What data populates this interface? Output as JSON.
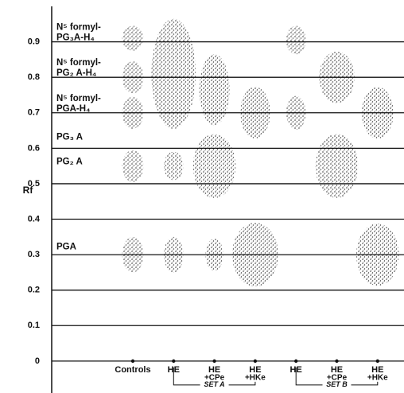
{
  "chart_data": {
    "type": "chromatogram",
    "y_label": "Rf",
    "ylim": [
      -0.09,
      1.0
    ],
    "yticks": [
      0,
      0.1,
      0.2,
      0.3,
      0.4,
      0.5,
      0.6,
      0.7,
      0.8,
      0.9
    ],
    "grid": true,
    "color": "#222222",
    "categories": [
      [
        "Controls"
      ],
      [
        "HE"
      ],
      [
        "HE",
        "+CPe"
      ],
      [
        "HE",
        "+HKe"
      ],
      [
        "HE"
      ],
      [
        "HE",
        "+CPe"
      ],
      [
        "HE",
        "+HKe"
      ]
    ],
    "sets": [
      {
        "label": "SET A",
        "lanes": [
          1,
          3
        ]
      },
      {
        "label": "SET B",
        "lanes": [
          4,
          6
        ]
      }
    ],
    "compound_labels": [
      {
        "lines": [
          "N⁵ formyl-",
          "PG₃A-H₄"
        ],
        "rf": 0.9
      },
      {
        "lines": [
          "N⁵ formyl-",
          "PG₂ A-H₄"
        ],
        "rf": 0.8
      },
      {
        "lines": [
          "N⁵ formyl-",
          "PGA-H₄"
        ],
        "rf": 0.7
      },
      {
        "lines": [
          "PG₃ A"
        ],
        "rf": 0.62
      },
      {
        "lines": [
          "PG₂ A"
        ],
        "rf": 0.55
      },
      {
        "lines": [
          "PGA"
        ],
        "rf": 0.31
      }
    ],
    "spots": [
      {
        "lane": 0,
        "rf": 0.91,
        "height": 0.07,
        "width": 0.06
      },
      {
        "lane": 0,
        "rf": 0.8,
        "height": 0.09,
        "width": 0.06
      },
      {
        "lane": 0,
        "rf": 0.7,
        "height": 0.09,
        "width": 0.06
      },
      {
        "lane": 0,
        "rf": 0.55,
        "height": 0.09,
        "width": 0.06
      },
      {
        "lane": 0,
        "rf": 0.3,
        "height": 0.1,
        "width": 0.06
      },
      {
        "lane": 1,
        "rf": 0.81,
        "height": 0.31,
        "width": 0.125
      },
      {
        "lane": 1,
        "rf": 0.55,
        "height": 0.08,
        "width": 0.055
      },
      {
        "lane": 1,
        "rf": 0.3,
        "height": 0.1,
        "width": 0.055
      },
      {
        "lane": 2,
        "rf": 0.765,
        "height": 0.2,
        "width": 0.085
      },
      {
        "lane": 2,
        "rf": 0.55,
        "height": 0.18,
        "width": 0.12
      },
      {
        "lane": 2,
        "rf": 0.3,
        "height": 0.09,
        "width": 0.05
      },
      {
        "lane": 3,
        "rf": 0.7,
        "height": 0.145,
        "width": 0.085
      },
      {
        "lane": 3,
        "rf": 0.3,
        "height": 0.18,
        "width": 0.13
      },
      {
        "lane": 4,
        "rf": 0.905,
        "height": 0.08,
        "width": 0.055
      },
      {
        "lane": 4,
        "rf": 0.7,
        "height": 0.095,
        "width": 0.055
      },
      {
        "lane": 5,
        "rf": 0.8,
        "height": 0.145,
        "width": 0.1
      },
      {
        "lane": 5,
        "rf": 0.55,
        "height": 0.18,
        "width": 0.12
      },
      {
        "lane": 6,
        "rf": 0.7,
        "height": 0.145,
        "width": 0.09
      },
      {
        "lane": 6,
        "rf": 0.3,
        "height": 0.175,
        "width": 0.12
      }
    ]
  }
}
